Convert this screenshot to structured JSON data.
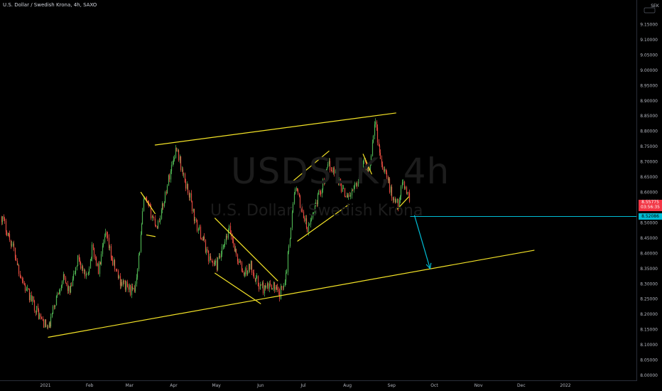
{
  "header": {
    "symbol_title": "U.S. Dollar / Swedish Krona, 4h, SAXO",
    "currency_label": "SEK"
  },
  "watermark": {
    "symbol": "USDSEK, 4h",
    "name": "U.S. Dollar / Swedish Krona"
  },
  "price_tag": {
    "price": "8.55775",
    "countdown": "03:56:35",
    "level": "8.52086",
    "bg_color": "#f23645",
    "level_color": "#00bcd4"
  },
  "colors": {
    "background": "#000000",
    "up": "#4caf50",
    "down": "#e04a3f",
    "trendline": "#f5e427",
    "arrow": "#00bcd4",
    "axis_text": "#b2b5be"
  },
  "chart_data": {
    "type": "candlestick",
    "ylim": [
      8.0,
      9.2
    ],
    "y_ticks": [
      "9.15000",
      "9.10000",
      "9.05000",
      "9.00000",
      "8.95000",
      "8.90000",
      "8.85000",
      "8.80000",
      "8.75000",
      "8.70000",
      "8.65000",
      "8.60000",
      "8.55000",
      "8.50000",
      "8.45000",
      "8.40000",
      "8.35000",
      "8.30000",
      "8.25000",
      "8.20000",
      "8.15000",
      "8.10000",
      "8.05000",
      "8.00000"
    ],
    "x_ticks": [
      {
        "label": "2021",
        "date": "2021-01-01"
      },
      {
        "label": "Feb",
        "date": "2021-02-01"
      },
      {
        "label": "Mar",
        "date": "2021-03-01"
      },
      {
        "label": "Apr",
        "date": "2021-04-01"
      },
      {
        "label": "May",
        "date": "2021-05-01"
      },
      {
        "label": "Jun",
        "date": "2021-06-01"
      },
      {
        "label": "Jul",
        "date": "2021-07-01"
      },
      {
        "label": "Aug",
        "date": "2021-08-01"
      },
      {
        "label": "Sep",
        "date": "2021-09-01"
      },
      {
        "label": "Oct",
        "date": "2021-10-01"
      },
      {
        "label": "Nov",
        "date": "2021-11-01"
      },
      {
        "label": "Dec",
        "date": "2021-12-01"
      },
      {
        "label": "2022",
        "date": "2022-01-01"
      }
    ],
    "price_path": [
      {
        "date": "2020-12-01",
        "price": 8.52
      },
      {
        "date": "2020-12-05",
        "price": 8.47
      },
      {
        "date": "2020-12-09",
        "price": 8.42
      },
      {
        "date": "2020-12-13",
        "price": 8.35
      },
      {
        "date": "2020-12-18",
        "price": 8.28
      },
      {
        "date": "2020-12-23",
        "price": 8.24
      },
      {
        "date": "2020-12-28",
        "price": 8.19
      },
      {
        "date": "2021-01-03",
        "price": 8.15
      },
      {
        "date": "2021-01-08",
        "price": 8.25
      },
      {
        "date": "2021-01-13",
        "price": 8.32
      },
      {
        "date": "2021-01-18",
        "price": 8.27
      },
      {
        "date": "2021-01-24",
        "price": 8.39
      },
      {
        "date": "2021-01-29",
        "price": 8.31
      },
      {
        "date": "2021-02-03",
        "price": 8.42
      },
      {
        "date": "2021-02-07",
        "price": 8.34
      },
      {
        "date": "2021-02-12",
        "price": 8.46
      },
      {
        "date": "2021-02-17",
        "price": 8.37
      },
      {
        "date": "2021-02-22",
        "price": 8.31
      },
      {
        "date": "2021-02-27",
        "price": 8.29
      },
      {
        "date": "2021-03-04",
        "price": 8.27
      },
      {
        "date": "2021-03-08",
        "price": 8.42
      },
      {
        "date": "2021-03-11",
        "price": 8.58
      },
      {
        "date": "2021-03-16",
        "price": 8.53
      },
      {
        "date": "2021-03-20",
        "price": 8.49
      },
      {
        "date": "2021-03-24",
        "price": 8.55
      },
      {
        "date": "2021-03-28",
        "price": 8.64
      },
      {
        "date": "2021-04-01",
        "price": 8.72
      },
      {
        "date": "2021-04-03",
        "price": 8.75
      },
      {
        "date": "2021-04-07",
        "price": 8.66
      },
      {
        "date": "2021-04-12",
        "price": 8.59
      },
      {
        "date": "2021-04-16",
        "price": 8.5
      },
      {
        "date": "2021-04-21",
        "price": 8.45
      },
      {
        "date": "2021-04-26",
        "price": 8.38
      },
      {
        "date": "2021-05-01",
        "price": 8.36
      },
      {
        "date": "2021-05-06",
        "price": 8.42
      },
      {
        "date": "2021-05-10",
        "price": 8.48
      },
      {
        "date": "2021-05-15",
        "price": 8.39
      },
      {
        "date": "2021-05-20",
        "price": 8.33
      },
      {
        "date": "2021-05-25",
        "price": 8.36
      },
      {
        "date": "2021-05-30",
        "price": 8.3
      },
      {
        "date": "2021-06-04",
        "price": 8.28
      },
      {
        "date": "2021-06-09",
        "price": 8.3
      },
      {
        "date": "2021-06-14",
        "price": 8.26
      },
      {
        "date": "2021-06-19",
        "price": 8.34
      },
      {
        "date": "2021-06-22",
        "price": 8.49
      },
      {
        "date": "2021-06-25",
        "price": 8.62
      },
      {
        "date": "2021-06-30",
        "price": 8.54
      },
      {
        "date": "2021-07-04",
        "price": 8.47
      },
      {
        "date": "2021-07-09",
        "price": 8.56
      },
      {
        "date": "2021-07-14",
        "price": 8.62
      },
      {
        "date": "2021-07-19",
        "price": 8.69
      },
      {
        "date": "2021-07-24",
        "price": 8.66
      },
      {
        "date": "2021-07-29",
        "price": 8.6
      },
      {
        "date": "2021-08-03",
        "price": 8.59
      },
      {
        "date": "2021-08-08",
        "price": 8.64
      },
      {
        "date": "2021-08-12",
        "price": 8.7
      },
      {
        "date": "2021-08-16",
        "price": 8.67
      },
      {
        "date": "2021-08-20",
        "price": 8.84
      },
      {
        "date": "2021-08-24",
        "price": 8.71
      },
      {
        "date": "2021-08-28",
        "price": 8.66
      },
      {
        "date": "2021-09-01",
        "price": 8.59
      },
      {
        "date": "2021-09-05",
        "price": 8.56
      },
      {
        "date": "2021-09-09",
        "price": 8.63
      },
      {
        "date": "2021-09-12",
        "price": 8.6
      },
      {
        "date": "2021-09-14",
        "price": 8.56
      }
    ],
    "current_price": 8.55775,
    "level_price": 8.52086,
    "trendlines": [
      {
        "name": "upper-channel-line",
        "color": "#f5e427",
        "from": {
          "date": "2021-03-19",
          "price": 8.755
        },
        "to": {
          "date": "2021-09-04",
          "price": 8.86
        }
      },
      {
        "name": "lower-channel-line",
        "color": "#f5e427",
        "from": {
          "date": "2021-01-03",
          "price": 8.125
        },
        "to": {
          "date": "2021-12-10",
          "price": 8.41
        }
      },
      {
        "name": "flag-mar-upper",
        "color": "#f5e427",
        "from": {
          "date": "2021-03-09",
          "price": 8.6
        },
        "to": {
          "date": "2021-03-19",
          "price": 8.53
        }
      },
      {
        "name": "flag-mar-lower",
        "color": "#f5e427",
        "from": {
          "date": "2021-03-13",
          "price": 8.46
        },
        "to": {
          "date": "2021-03-19",
          "price": 8.455
        }
      },
      {
        "name": "wedge-may-upper",
        "color": "#f5e427",
        "from": {
          "date": "2021-04-30",
          "price": 8.515
        },
        "to": {
          "date": "2021-06-13",
          "price": 8.31
        }
      },
      {
        "name": "wedge-may-lower",
        "color": "#f5e427",
        "from": {
          "date": "2021-04-30",
          "price": 8.335
        },
        "to": {
          "date": "2021-06-01",
          "price": 8.235
        }
      },
      {
        "name": "channel-jul-upper",
        "color": "#f5e427",
        "from": {
          "date": "2021-06-22",
          "price": 8.63
        },
        "to": {
          "date": "2021-07-19",
          "price": 8.735
        }
      },
      {
        "name": "channel-jul-lower",
        "color": "#f5e427",
        "from": {
          "date": "2021-06-27",
          "price": 8.44
        },
        "to": {
          "date": "2021-08-02",
          "price": 8.56
        }
      },
      {
        "name": "flag-aug-upper",
        "color": "#f5e427",
        "from": {
          "date": "2021-08-12",
          "price": 8.725
        },
        "to": {
          "date": "2021-08-18",
          "price": 8.66
        }
      },
      {
        "name": "flag-sep-lower",
        "color": "#f5e427",
        "from": {
          "date": "2021-09-05",
          "price": 8.545
        },
        "to": {
          "date": "2021-09-13",
          "price": 8.585
        }
      }
    ],
    "forecast_arrow": {
      "color": "#00bcd4",
      "from": {
        "date": "2021-09-17",
        "price": 8.525
      },
      "to": {
        "date": "2021-09-28",
        "price": 8.35
      }
    },
    "grid": false,
    "legend": "none"
  }
}
